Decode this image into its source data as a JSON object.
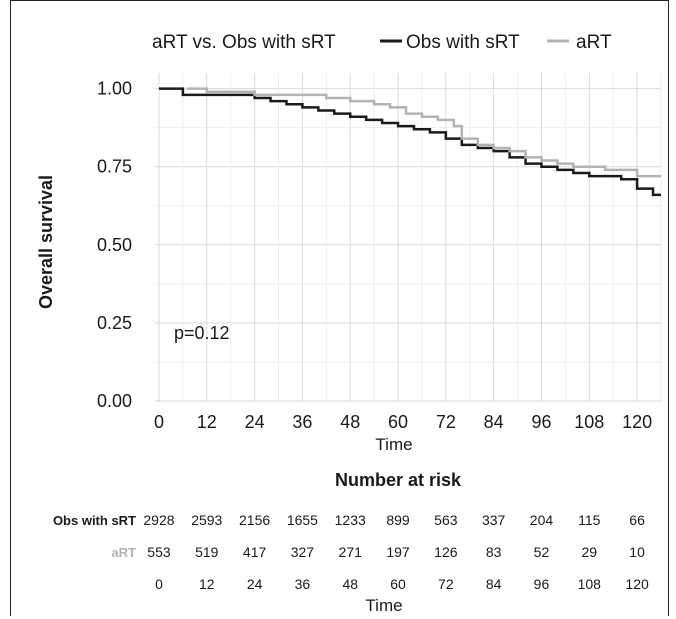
{
  "chart_data": {
    "type": "line",
    "title": "",
    "legend": {
      "title": "aRT vs. Obs with sRT",
      "entries": [
        {
          "label": "Obs with sRT",
          "color": "#1a1a1a"
        },
        {
          "label": "aRT",
          "color": "#b3b3b3"
        }
      ],
      "placement": "top"
    },
    "xlabel": "Time",
    "ylabel": "Overall survival",
    "xlim": [
      -1,
      126
    ],
    "ylim": [
      0,
      1.05
    ],
    "x_ticks": [
      "0",
      "12",
      "24",
      "36",
      "48",
      "60",
      "72",
      "84",
      "96",
      "108",
      "120"
    ],
    "y_ticks": [
      "0.00",
      "0.25",
      "0.50",
      "0.75",
      "1.00"
    ],
    "grid": true,
    "annotation": "p=0.12",
    "series": [
      {
        "name": "Obs with sRT",
        "color": "#1a1a1a",
        "x": [
          0,
          6,
          12,
          18,
          24,
          28,
          32,
          36,
          40,
          44,
          48,
          52,
          56,
          60,
          64,
          68,
          72,
          76,
          80,
          84,
          88,
          92,
          96,
          100,
          104,
          108,
          112,
          116,
          120,
          124,
          126
        ],
        "y": [
          1.0,
          0.98,
          0.98,
          0.98,
          0.97,
          0.96,
          0.95,
          0.94,
          0.93,
          0.92,
          0.91,
          0.9,
          0.89,
          0.88,
          0.87,
          0.86,
          0.84,
          0.82,
          0.81,
          0.8,
          0.78,
          0.76,
          0.75,
          0.74,
          0.73,
          0.72,
          0.72,
          0.71,
          0.68,
          0.66,
          0.66
        ]
      },
      {
        "name": "aRT",
        "color": "#b3b3b3",
        "x": [
          7,
          12,
          18,
          24,
          30,
          36,
          42,
          48,
          54,
          58,
          62,
          66,
          70,
          74,
          76,
          80,
          84,
          88,
          92,
          96,
          100,
          104,
          108,
          112,
          116,
          118,
          120,
          126
        ],
        "y": [
          1.0,
          0.99,
          0.99,
          0.98,
          0.98,
          0.98,
          0.97,
          0.96,
          0.95,
          0.94,
          0.92,
          0.91,
          0.9,
          0.88,
          0.84,
          0.82,
          0.81,
          0.8,
          0.78,
          0.77,
          0.76,
          0.75,
          0.75,
          0.74,
          0.74,
          0.74,
          0.72,
          0.72
        ]
      }
    ],
    "risk_table": {
      "title": "Number at risk",
      "xlabel": "Time",
      "times": [
        "0",
        "12",
        "24",
        "36",
        "48",
        "60",
        "72",
        "84",
        "96",
        "108",
        "120"
      ],
      "rows": [
        {
          "label": "Obs with sRT",
          "color": "#1a1a1a",
          "values": [
            "2928",
            "2593",
            "2156",
            "1655",
            "1233",
            "899",
            "563",
            "337",
            "204",
            "115",
            "66"
          ]
        },
        {
          "label": "aRT",
          "color": "#b3b3b3",
          "values": [
            "553",
            "519",
            "417",
            "327",
            "271",
            "197",
            "126",
            "83",
            "52",
            "29",
            "10"
          ]
        }
      ]
    }
  }
}
